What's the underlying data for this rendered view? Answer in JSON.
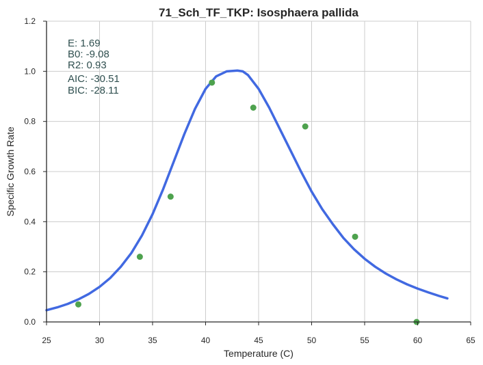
{
  "chart_data": {
    "type": "scatter",
    "title": "71_Sch_TF_TKP: Isosphaera pallida",
    "xlabel": "Temperature (C)",
    "ylabel": "Specific Growth Rate",
    "xlim": [
      25,
      65
    ],
    "ylim": [
      0,
      1.2
    ],
    "xticks": [
      25,
      30,
      35,
      40,
      45,
      50,
      55,
      60,
      65
    ],
    "yticks": [
      0.0,
      0.2,
      0.4,
      0.6,
      0.8,
      1.0,
      1.2
    ],
    "xtick_labels": [
      "25",
      "30",
      "35",
      "40",
      "45",
      "50",
      "55",
      "60",
      "65"
    ],
    "ytick_labels": [
      "0.0",
      "0.2",
      "0.4",
      "0.6",
      "0.8",
      "1.0",
      "1.2"
    ],
    "grid": true,
    "series": [
      {
        "kind": "scatter",
        "color": "#4ea24e",
        "x": [
          28.0,
          33.8,
          36.7,
          40.6,
          44.5,
          49.4,
          54.1,
          59.9
        ],
        "y": [
          0.07,
          0.26,
          0.5,
          0.955,
          0.855,
          0.78,
          0.34,
          0.0
        ]
      },
      {
        "kind": "line",
        "color": "#4169e1",
        "x": [
          25,
          26,
          27,
          28,
          29,
          30,
          31,
          32,
          33,
          34,
          35,
          36,
          37,
          38,
          39,
          40,
          41,
          42,
          43,
          43.5,
          44,
          45,
          46,
          47,
          48,
          49,
          50,
          51,
          52,
          53,
          54,
          55,
          56,
          57,
          58,
          59,
          60,
          61,
          62,
          62.8
        ],
        "y": [
          0.047,
          0.058,
          0.072,
          0.09,
          0.112,
          0.14,
          0.175,
          0.22,
          0.275,
          0.345,
          0.43,
          0.53,
          0.64,
          0.75,
          0.85,
          0.93,
          0.98,
          1.0,
          1.003,
          1.0,
          0.985,
          0.93,
          0.855,
          0.77,
          0.685,
          0.6,
          0.52,
          0.45,
          0.39,
          0.335,
          0.29,
          0.252,
          0.22,
          0.193,
          0.17,
          0.15,
          0.133,
          0.118,
          0.104,
          0.094
        ]
      }
    ],
    "annotations": [
      "E:  1.69",
      "B0:  -9.08",
      "R2:  0.93",
      "AIC: -30.51",
      "BIC: -28.11"
    ]
  }
}
